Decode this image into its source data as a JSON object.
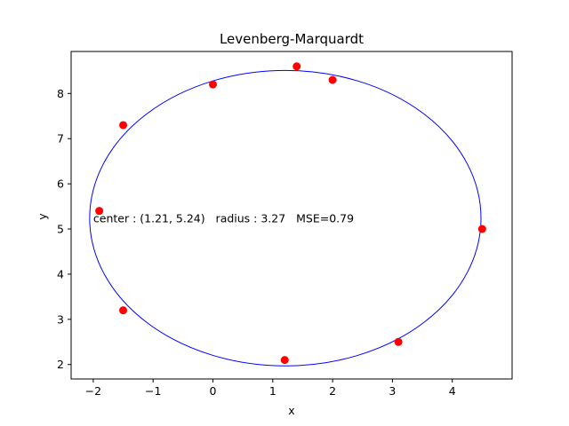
{
  "chart_data": {
    "type": "scatter",
    "title": "Levenberg-Marquardt",
    "xlabel": "x",
    "ylabel": "y",
    "xlim": [
      -2.37,
      5.0
    ],
    "ylim": [
      1.68,
      8.93
    ],
    "xticks": [
      -2,
      -1,
      0,
      1,
      2,
      3,
      4
    ],
    "yticks": [
      2,
      3,
      4,
      5,
      6,
      7,
      8
    ],
    "grid": false,
    "points": {
      "color": "#ff0000",
      "x": [
        -1.5,
        -1.9,
        -1.5,
        0.0,
        1.4,
        2.0,
        4.5,
        3.1,
        1.2
      ],
      "y": [
        7.3,
        5.4,
        3.2,
        8.2,
        8.6,
        8.3,
        5.0,
        2.5,
        2.1
      ]
    },
    "fitted_circle": {
      "color": "#0000ff",
      "center": [
        1.21,
        5.24
      ],
      "radius": 3.27
    },
    "annotation": {
      "text": "center : (1.21, 5.24)   radius : 3.27   MSE=0.79",
      "x": -2.0,
      "y": 5.24
    }
  }
}
